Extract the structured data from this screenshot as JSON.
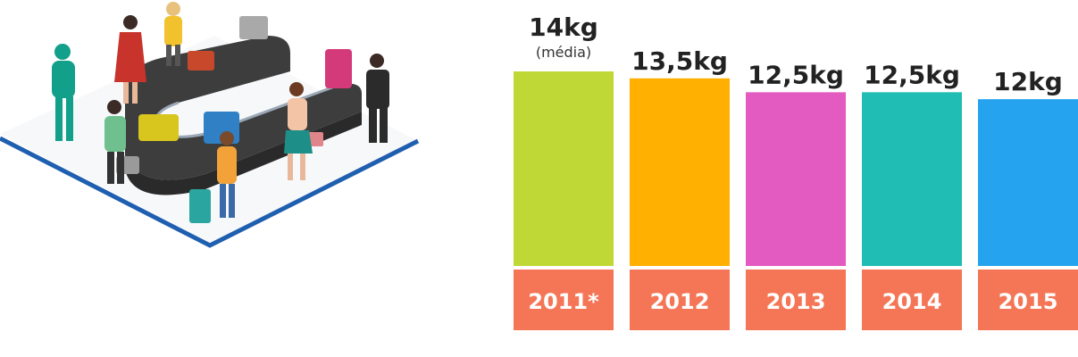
{
  "chart_data": {
    "type": "bar",
    "categories": [
      "2011*",
      "2012",
      "2013",
      "2014",
      "2015"
    ],
    "values": [
      14,
      13.5,
      12.5,
      12.5,
      12
    ],
    "value_labels": [
      "14kg",
      "13,5kg",
      "12,5kg",
      "12,5kg",
      "12kg"
    ],
    "first_value_note": "(média)",
    "bar_colors": [
      "#bfd835",
      "#ffb000",
      "#e35ac0",
      "#1fbdb3",
      "#26a3ee"
    ],
    "category_box_color": "#f47656",
    "title": "",
    "xlabel": "",
    "ylabel": "",
    "grid": false,
    "legend": "none"
  },
  "illustration": {
    "name": "airport baggage carousel",
    "colors": {
      "floor_edge": "#1f5fb0",
      "belt": "#3a3a3a"
    }
  }
}
